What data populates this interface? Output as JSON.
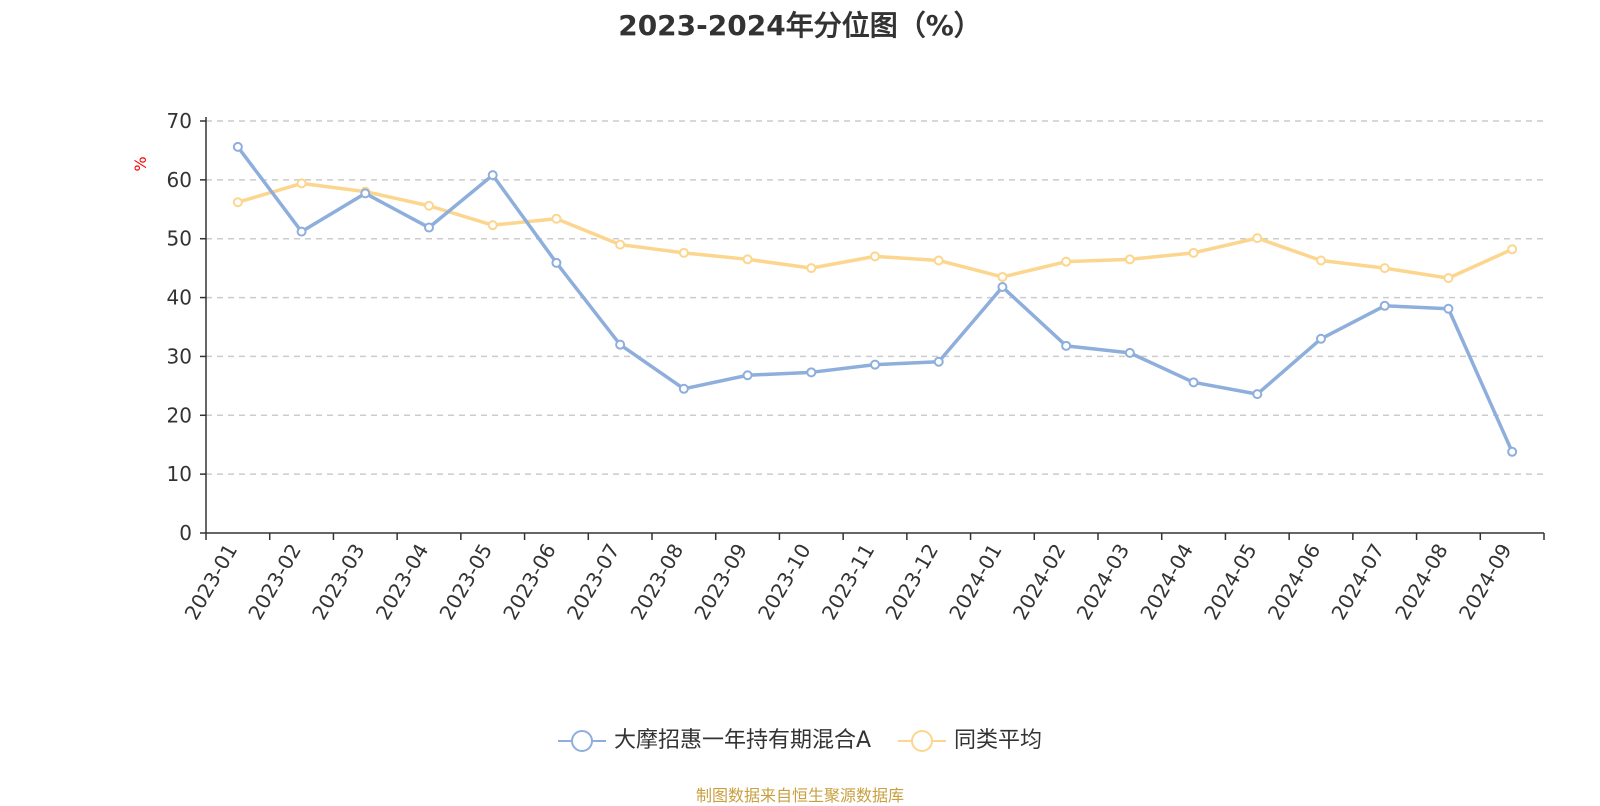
{
  "chart_data": {
    "type": "line",
    "title": "2023-2024年分位图（%）",
    "ylabel": "%",
    "ylim": [
      0,
      70
    ],
    "yticks": [
      0,
      10,
      20,
      30,
      40,
      50,
      60,
      70
    ],
    "grid": true,
    "legend_position": "bottom",
    "categories": [
      "2023-01",
      "2023-02",
      "2023-03",
      "2023-04",
      "2023-05",
      "2023-06",
      "2023-07",
      "2023-08",
      "2023-09",
      "2023-10",
      "2023-11",
      "2023-12",
      "2024-01",
      "2024-02",
      "2024-03",
      "2024-04",
      "2024-05",
      "2024-06",
      "2024-07",
      "2024-08",
      "2024-09"
    ],
    "series": [
      {
        "name": "大摩招惠一年持有期混合A",
        "color": "#8eaedc",
        "values": [
          65.6,
          51.2,
          57.7,
          51.9,
          60.8,
          45.9,
          32.0,
          24.5,
          26.8,
          27.3,
          28.6,
          29.1,
          41.8,
          31.8,
          30.6,
          25.6,
          23.6,
          33.0,
          38.6,
          38.1,
          13.8
        ]
      },
      {
        "name": "同类平均",
        "color": "#fcd68e",
        "values": [
          56.2,
          59.4,
          58.0,
          55.6,
          52.3,
          53.4,
          49.0,
          47.6,
          46.5,
          45.0,
          47.0,
          46.3,
          43.5,
          46.1,
          46.5,
          47.6,
          50.1,
          46.3,
          45.0,
          43.3,
          48.2
        ]
      }
    ]
  },
  "source": {
    "text": "制图数据来自恒生聚源数据库",
    "color": "#c8a040"
  }
}
